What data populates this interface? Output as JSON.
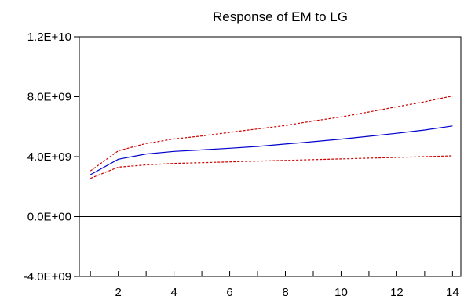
{
  "chart_data": {
    "type": "line",
    "title": "Response of EM to LG",
    "xlabel": "",
    "ylabel": "",
    "x": [
      1,
      2,
      3,
      4,
      5,
      6,
      7,
      8,
      9,
      10,
      11,
      12,
      13,
      14
    ],
    "xlim": [
      0.6,
      14.3
    ],
    "ylim": [
      -4000000000,
      12000000000
    ],
    "x_ticks": [
      1,
      2,
      3,
      4,
      5,
      6,
      7,
      8,
      9,
      10,
      11,
      12,
      13,
      14
    ],
    "x_tick_labels": [
      {
        "value": 2,
        "label": "2"
      },
      {
        "value": 4,
        "label": "4"
      },
      {
        "value": 6,
        "label": "6"
      },
      {
        "value": 8,
        "label": "8"
      },
      {
        "value": 10,
        "label": "10"
      },
      {
        "value": 12,
        "label": "12"
      },
      {
        "value": 14,
        "label": "14"
      }
    ],
    "y_ticks": [
      {
        "value": 12000000000,
        "label": "1.2E+10"
      },
      {
        "value": 8000000000,
        "label": "8.0E+09"
      },
      {
        "value": 4000000000,
        "label": "4.0E+09"
      },
      {
        "value": 0,
        "label": "0.0E+00"
      },
      {
        "value": -4000000000,
        "label": "-4.0E+09"
      }
    ],
    "grid": false,
    "legend": "none",
    "series": [
      {
        "role": "response",
        "color": "#0000cc",
        "dash": "solid",
        "values": [
          2800000000,
          3830000000,
          4180000000,
          4350000000,
          4450000000,
          4560000000,
          4680000000,
          4840000000,
          5000000000,
          5170000000,
          5360000000,
          5560000000,
          5780000000,
          6050000000
        ]
      },
      {
        "role": "upper-band",
        "color": "#cc0000",
        "dash": "dashed",
        "values": [
          3050000000,
          4390000000,
          4880000000,
          5180000000,
          5380000000,
          5620000000,
          5850000000,
          6080000000,
          6380000000,
          6650000000,
          6980000000,
          7330000000,
          7660000000,
          8050000000
        ]
      },
      {
        "role": "lower-band",
        "color": "#cc0000",
        "dash": "dashed",
        "values": [
          2550000000,
          3300000000,
          3450000000,
          3550000000,
          3600000000,
          3650000000,
          3700000000,
          3750000000,
          3800000000,
          3850000000,
          3900000000,
          3950000000,
          4000000000,
          4050000000
        ]
      }
    ]
  }
}
